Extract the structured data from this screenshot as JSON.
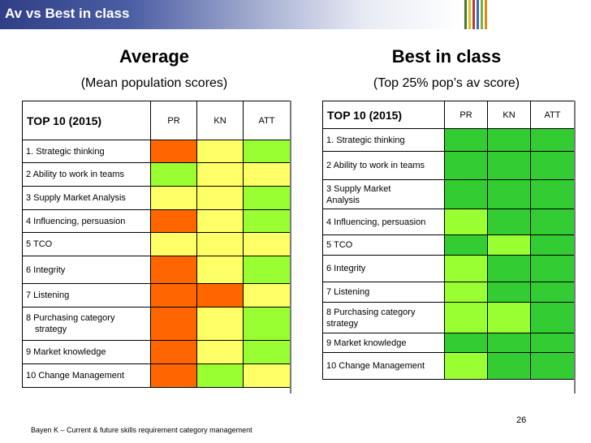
{
  "slide": {
    "title": "Av vs Best in class",
    "page_number": "26",
    "footer": "Bayen K – Current & future skills requirement category management"
  },
  "colors": {
    "orange": "#ff6600",
    "yellow": "#ffff66",
    "light_green": "#99ff33",
    "green": "#33cc33"
  },
  "average": {
    "heading": "Average",
    "subheading": "(Mean population scores)",
    "table_title": "TOP 10 (2015)",
    "columns": [
      "PR",
      "KN",
      "ATT"
    ],
    "rows": [
      {
        "label": "1.  Strategic thinking",
        "cells": [
          "orange",
          "yellow",
          "light_green"
        ]
      },
      {
        "label": "2  Ability to work in teams",
        "cells": [
          "light_green",
          "yellow",
          "yellow"
        ]
      },
      {
        "label": "3  Supply Market Analysis",
        "cells": [
          "yellow",
          "yellow",
          "light_green"
        ]
      },
      {
        "label": "4  Influencing, persuasion",
        "cells": [
          "orange",
          "yellow",
          "light_green"
        ]
      },
      {
        "label": "5  TCO",
        "cells": [
          "yellow",
          "yellow",
          "yellow"
        ]
      },
      {
        "label": "6 Integrity",
        "cells": [
          "orange",
          "yellow",
          "light_green"
        ]
      },
      {
        "label": "7  Listening",
        "cells": [
          "orange",
          "orange",
          "yellow"
        ]
      },
      {
        "label": "8 Purchasing category",
        "label2": "strategy",
        "cells": [
          "orange",
          "yellow",
          "light_green"
        ]
      },
      {
        "label": "9  Market knowledge",
        "cells": [
          "orange",
          "yellow",
          "light_green"
        ]
      },
      {
        "label": "10 Change Management",
        "cells": [
          "orange",
          "light_green",
          "yellow"
        ]
      }
    ]
  },
  "best": {
    "heading": "Best in class",
    "subheading": "(Top 25% pop’s av score)",
    "table_title": "TOP 10 (2015)",
    "columns": [
      "PR",
      "KN",
      "ATT"
    ],
    "rows": [
      {
        "label": "1.  Strategic thinking",
        "cells": [
          "green",
          "green",
          "green"
        ]
      },
      {
        "label": "2  Ability to work in teams",
        "cells": [
          "green",
          "green",
          "green"
        ]
      },
      {
        "label": "3  Supply Market",
        "label2": "Analysis",
        "cells": [
          "green",
          "green",
          "green"
        ]
      },
      {
        "label": "4  Influencing, persuasion",
        "cells": [
          "light_green",
          "green",
          "green"
        ]
      },
      {
        "label": "5  TCO",
        "cells": [
          "green",
          "light_green",
          "green"
        ]
      },
      {
        "label": "6 Integrity",
        "cells": [
          "light_green",
          "green",
          "green"
        ]
      },
      {
        "label": "7  Listening",
        "cells": [
          "light_green",
          "green",
          "green"
        ]
      },
      {
        "label": "8 Purchasing category",
        "label2": "strategy",
        "cells": [
          "light_green",
          "light_green",
          "green"
        ]
      },
      {
        "label": "9  Market knowledge",
        "cells": [
          "green",
          "green",
          "green"
        ]
      },
      {
        "label": "10 Change Management",
        "cells": [
          "light_green",
          "green",
          "green"
        ]
      }
    ]
  }
}
